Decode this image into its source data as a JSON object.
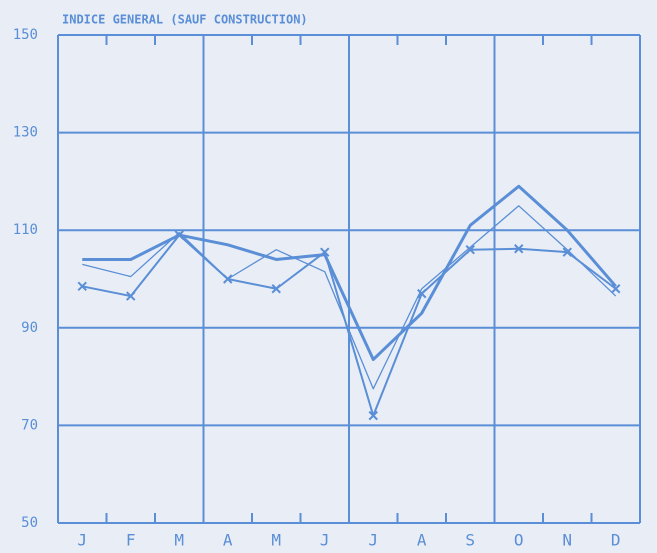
{
  "chart_data": {
    "type": "line",
    "title": "INDICE GENERAL (SAUF CONSTRUCTION)",
    "categories": [
      "J",
      "F",
      "M",
      "A",
      "M",
      "J",
      "J",
      "A",
      "S",
      "O",
      "N",
      "D"
    ],
    "series": [
      {
        "color": "#5a8ed6",
        "marker": "x",
        "values": [
          98.5,
          96.5,
          109,
          100,
          98,
          105.5,
          72,
          97,
          106,
          106.2,
          105.5,
          98
        ]
      },
      {
        "color": "#5a8ed6",
        "values": [
          104,
          104,
          109,
          107,
          104,
          105,
          83.5,
          93,
          111,
          119,
          110,
          98.5
        ]
      },
      {
        "color": "#5a8ed6",
        "values": [
          103,
          100.5,
          109.5,
          100,
          106,
          101.5,
          77.5,
          98,
          106.5,
          115,
          106,
          96.5
        ]
      }
    ],
    "ylim": [
      50,
      150
    ],
    "yticks": [
      50,
      70,
      90,
      110,
      130,
      150
    ],
    "grid": true
  }
}
